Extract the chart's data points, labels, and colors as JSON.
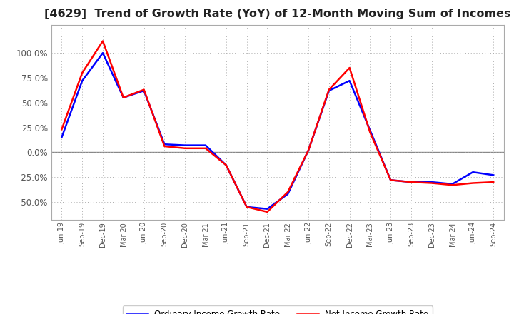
{
  "title": "[4629]  Trend of Growth Rate (YoY) of 12-Month Moving Sum of Incomes",
  "title_fontsize": 11.5,
  "ylim": [
    -0.68,
    1.28
  ],
  "yticks": [
    -0.5,
    -0.25,
    0.0,
    0.25,
    0.5,
    0.75,
    1.0
  ],
  "ordinary_color": "#0000FF",
  "net_color": "#FF0000",
  "line_width": 1.8,
  "legend_ordinary": "Ordinary Income Growth Rate",
  "legend_net": "Net Income Growth Rate",
  "background_color": "#FFFFFF",
  "grid_color": "#AAAAAA",
  "dates": [
    "Jun-19",
    "Sep-19",
    "Dec-19",
    "Mar-20",
    "Jun-20",
    "Sep-20",
    "Dec-20",
    "Mar-21",
    "Jun-21",
    "Sep-21",
    "Dec-21",
    "Mar-22",
    "Jun-22",
    "Sep-22",
    "Dec-22",
    "Mar-23",
    "Jun-23",
    "Sep-23",
    "Dec-23",
    "Mar-24",
    "Jun-24",
    "Sep-24"
  ],
  "ordinary_income": [
    0.15,
    0.72,
    1.0,
    0.55,
    0.62,
    0.08,
    0.07,
    0.07,
    -0.13,
    -0.55,
    -0.57,
    -0.42,
    0.02,
    0.62,
    0.72,
    0.22,
    -0.28,
    -0.3,
    -0.3,
    -0.32,
    -0.2,
    -0.23
  ],
  "net_income": [
    0.23,
    0.8,
    1.12,
    0.55,
    0.63,
    0.06,
    0.04,
    0.04,
    -0.13,
    -0.55,
    -0.6,
    -0.4,
    0.02,
    0.63,
    0.85,
    0.2,
    -0.28,
    -0.3,
    -0.31,
    -0.33,
    -0.31,
    -0.3
  ]
}
